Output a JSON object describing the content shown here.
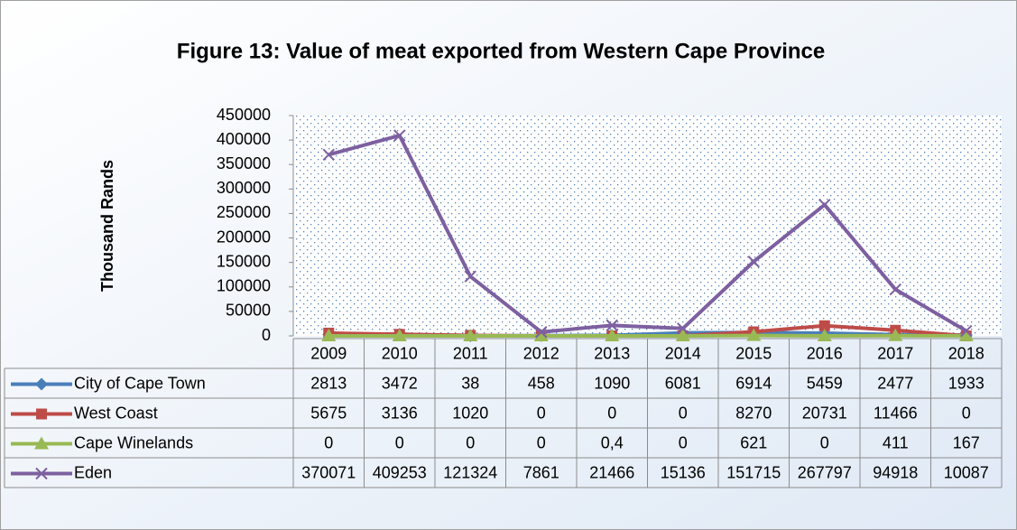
{
  "chart_data": {
    "type": "line",
    "title": "Figure 13: Value of meat exported from Western Cape Province",
    "y_label": "Thousand Rands",
    "categories": [
      "2009",
      "2010",
      "2011",
      "2012",
      "2013",
      "2014",
      "2015",
      "2016",
      "2017",
      "2018"
    ],
    "ylim": [
      0,
      450000
    ],
    "yticks": [
      0,
      50000,
      100000,
      150000,
      200000,
      250000,
      300000,
      350000,
      400000,
      450000
    ],
    "series": [
      {
        "name": "City of Cape Town",
        "color": "#4a7ebb",
        "marker": "diamond",
        "values": [
          2813,
          3472,
          38,
          458,
          1090,
          6081,
          6914,
          5459,
          2477,
          1933
        ]
      },
      {
        "name": "West Coast",
        "color": "#be4b48",
        "marker": "square",
        "values": [
          5675,
          3136,
          1020,
          0,
          0,
          0,
          8270,
          20731,
          11466,
          0
        ]
      },
      {
        "name": "Cape Winelands",
        "color": "#98b954",
        "marker": "triangle",
        "values": [
          0,
          0,
          0,
          0,
          0.4,
          0,
          621,
          0,
          411,
          167
        ],
        "value_labels": [
          "0",
          "0",
          "0",
          "0",
          "0,4",
          "0",
          "621",
          "0",
          "411",
          "167"
        ]
      },
      {
        "name": "Eden",
        "color": "#7d60a0",
        "marker": "x",
        "values": [
          370071,
          409253,
          121324,
          7861,
          21466,
          15136,
          151715,
          267797,
          94918,
          10087
        ]
      }
    ]
  }
}
